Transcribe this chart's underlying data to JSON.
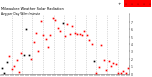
{
  "title": "Milwaukee Weather Solar Radiation",
  "subtitle": "Avg per Day W/m²/minute",
  "bg_color": "#ffffff",
  "plot_bg": "#ffffff",
  "grid_color": "#bbbbbb",
  "dot_color_red": "#ff0000",
  "dot_color_black": "#000000",
  "highlight_color": "#ff0000",
  "ylim": [
    0,
    800
  ],
  "xlim": [
    0,
    366
  ],
  "n_points": 53,
  "vgrid_month_positions": [
    31,
    59,
    90,
    120,
    151,
    181,
    212,
    243,
    273,
    304,
    334
  ],
  "seed": 17
}
